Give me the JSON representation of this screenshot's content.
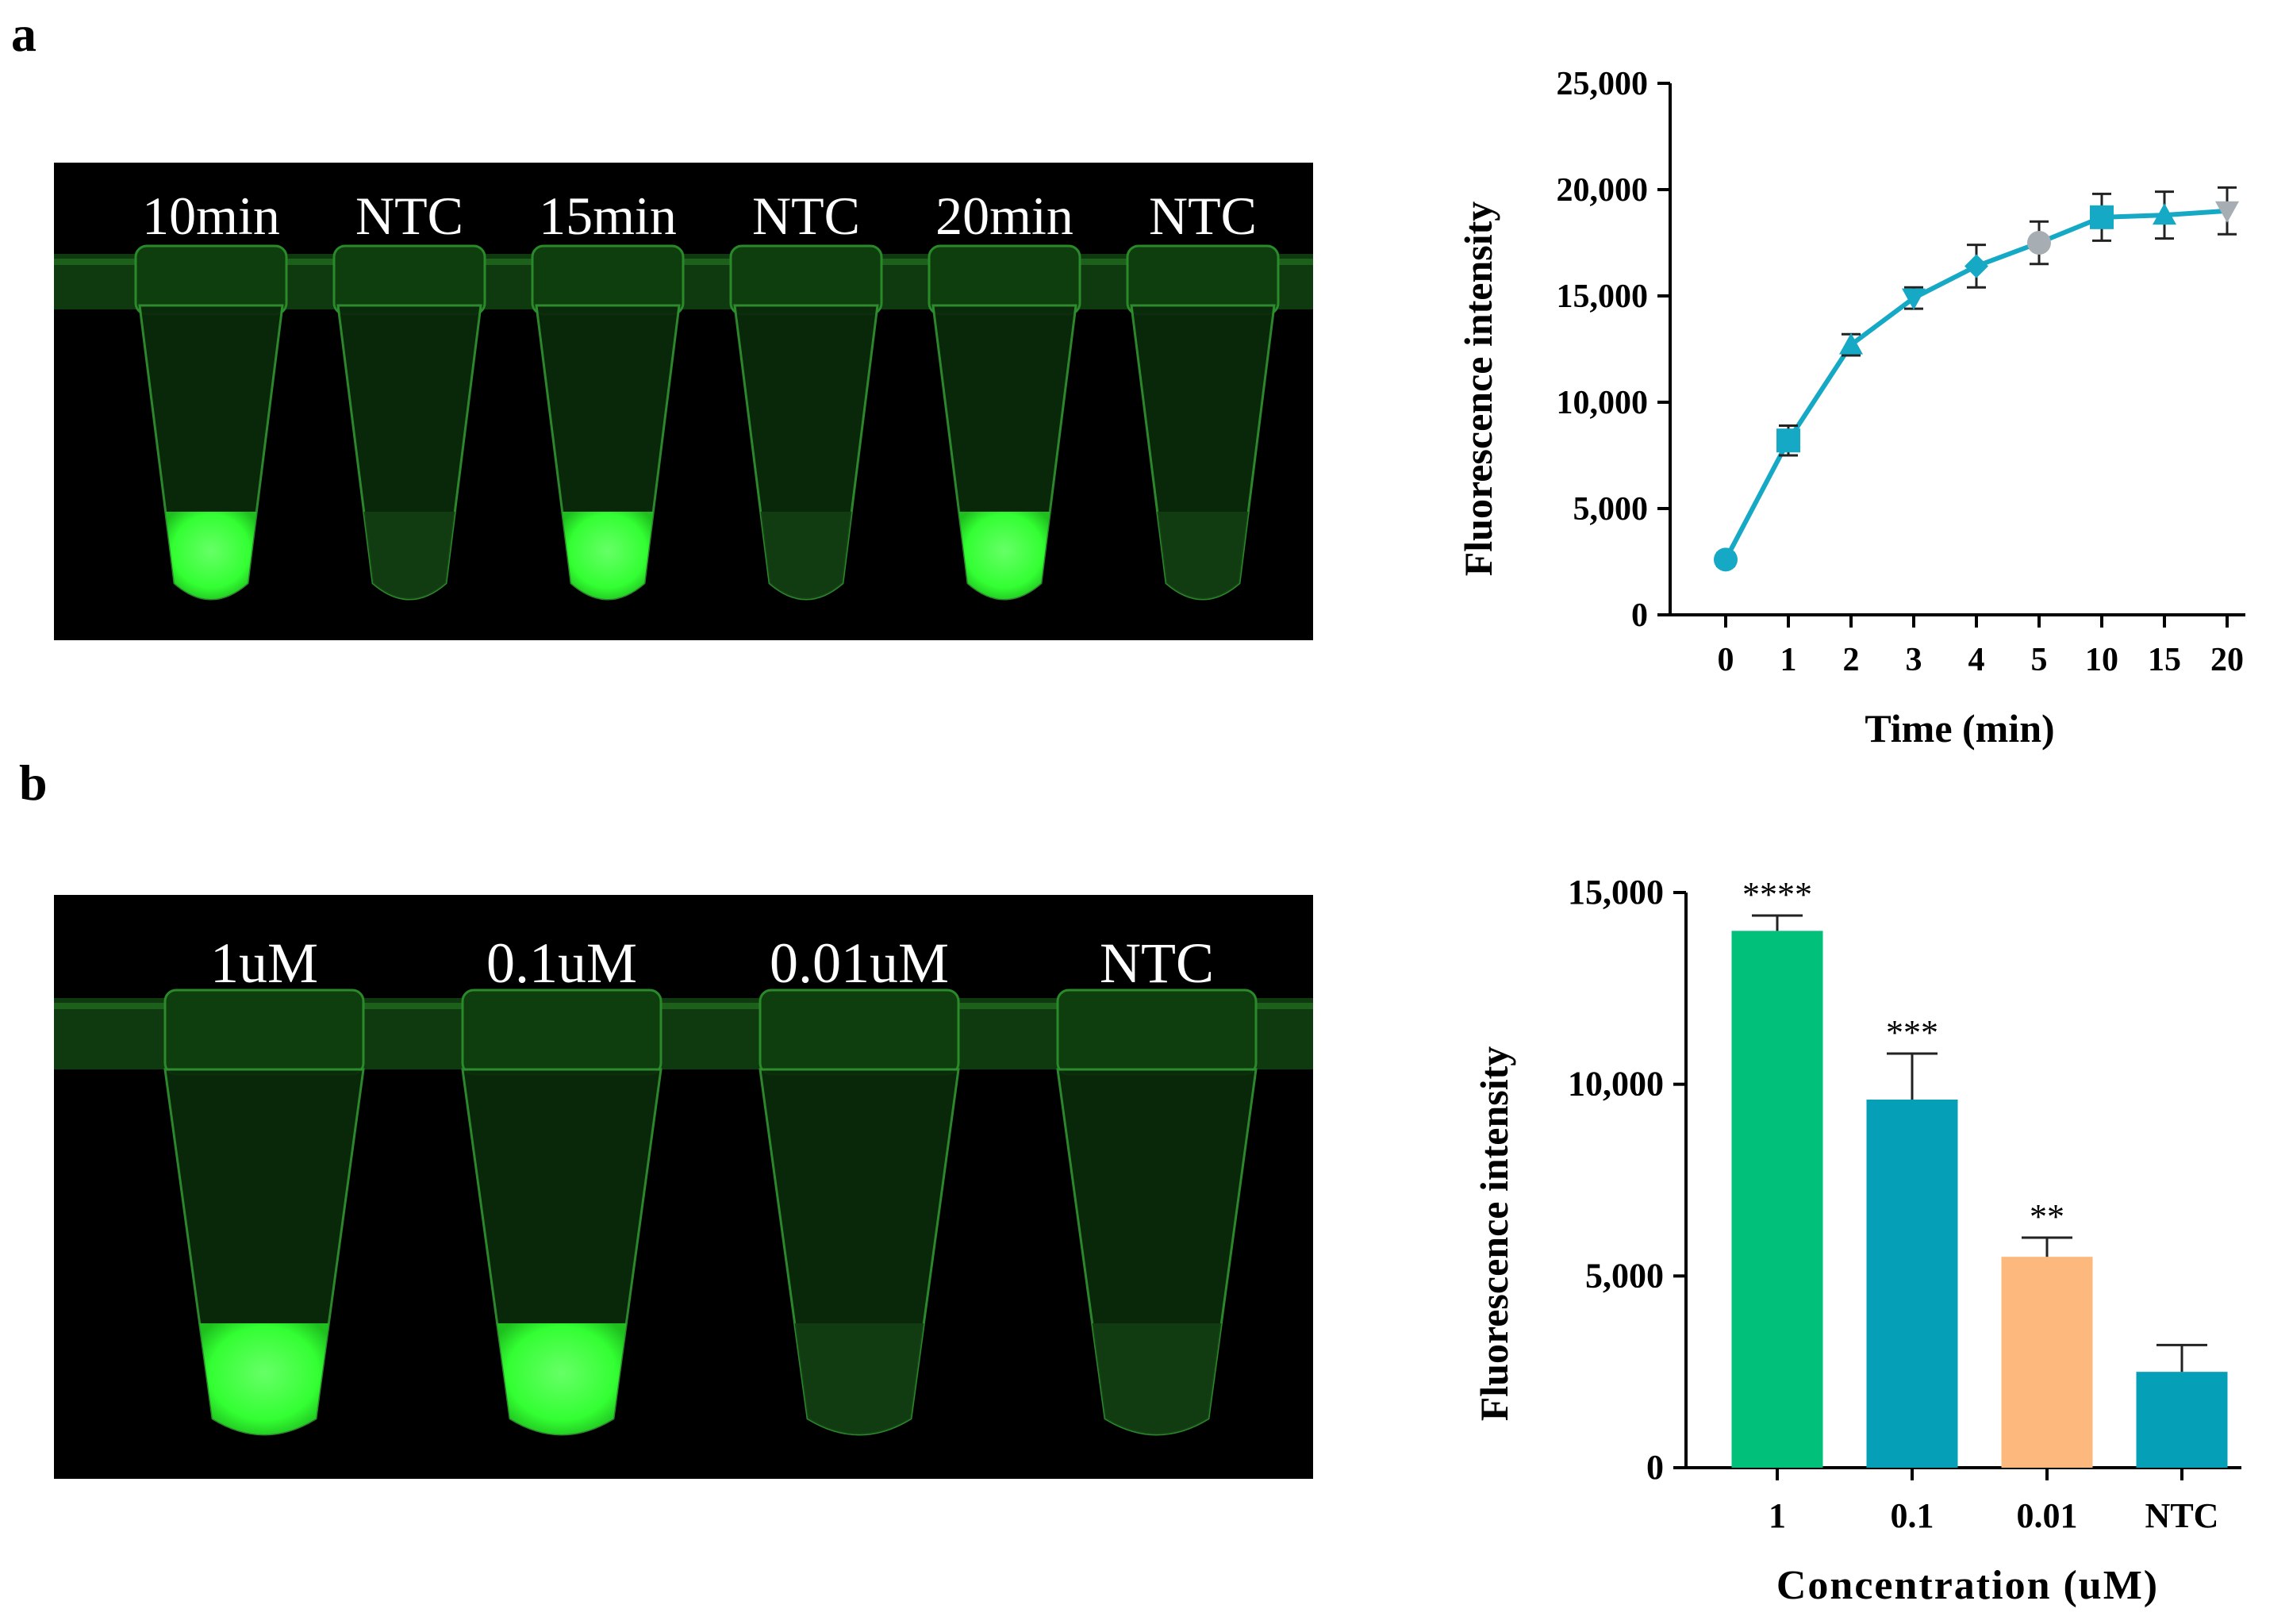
{
  "panels": {
    "a": {
      "label": "a"
    },
    "b": {
      "label": "b"
    }
  },
  "photo_a": {
    "tubes": [
      {
        "label": "10min",
        "glow": true
      },
      {
        "label": "NTC",
        "glow": false
      },
      {
        "label": "15min",
        "glow": true
      },
      {
        "label": "NTC",
        "glow": false
      },
      {
        "label": "20min",
        "glow": true
      },
      {
        "label": "NTC",
        "glow": false
      }
    ]
  },
  "photo_b": {
    "tubes": [
      {
        "label": "1uM",
        "glow": true
      },
      {
        "label": "0.1uM",
        "glow": true
      },
      {
        "label": "0.01uM",
        "glow": false
      },
      {
        "label": "NTC",
        "glow": false
      }
    ]
  },
  "colors": {
    "line": "#16a9c6",
    "green_bar": "#00c07a",
    "teal_bar": "#05a0b8",
    "orange_bar": "#fdb97d",
    "glow": "#33ff33"
  },
  "chart_data": [
    {
      "type": "line",
      "title": "",
      "xlabel": "Time (min)",
      "ylabel": "Fluorescence intensity",
      "categories": [
        "0",
        "1",
        "2",
        "3",
        "4",
        "5",
        "10",
        "15",
        "20"
      ],
      "ylim": [
        0,
        25000
      ],
      "yticks": [
        0,
        5000,
        10000,
        15000,
        20000,
        25000
      ],
      "ytick_labels": [
        "0",
        "5,000",
        "10,000",
        "15,000",
        "20,000",
        "25,000"
      ],
      "series": [
        {
          "name": "Fluorescence",
          "values": [
            2600,
            8200,
            12700,
            14900,
            16400,
            17500,
            18700,
            18800,
            19000
          ],
          "errors": [
            300,
            700,
            500,
            500,
            1000,
            1000,
            1100,
            1100,
            1100
          ],
          "markers": [
            "circle",
            "square",
            "triangle-up",
            "triangle-down",
            "diamond",
            "circle-gray",
            "square",
            "triangle-up",
            "triangle-down-gray"
          ]
        }
      ]
    },
    {
      "type": "bar",
      "title": "",
      "xlabel": "Concentration (uM)",
      "ylabel": "Fluorescence intensity",
      "categories": [
        "1",
        "0.1",
        "0.01",
        "NTC"
      ],
      "values": [
        14000,
        9600,
        5500,
        2500
      ],
      "errors": [
        400,
        1200,
        500,
        700
      ],
      "significance": [
        "****",
        "***",
        "**",
        ""
      ],
      "bar_colors": [
        "#00c07a",
        "#05a0b8",
        "#fdb97d",
        "#05a0b8"
      ],
      "ylim": [
        0,
        15000
      ],
      "yticks": [
        0,
        5000,
        10000,
        15000
      ],
      "ytick_labels": [
        "0",
        "5,000",
        "10,000",
        "15,000"
      ]
    }
  ]
}
